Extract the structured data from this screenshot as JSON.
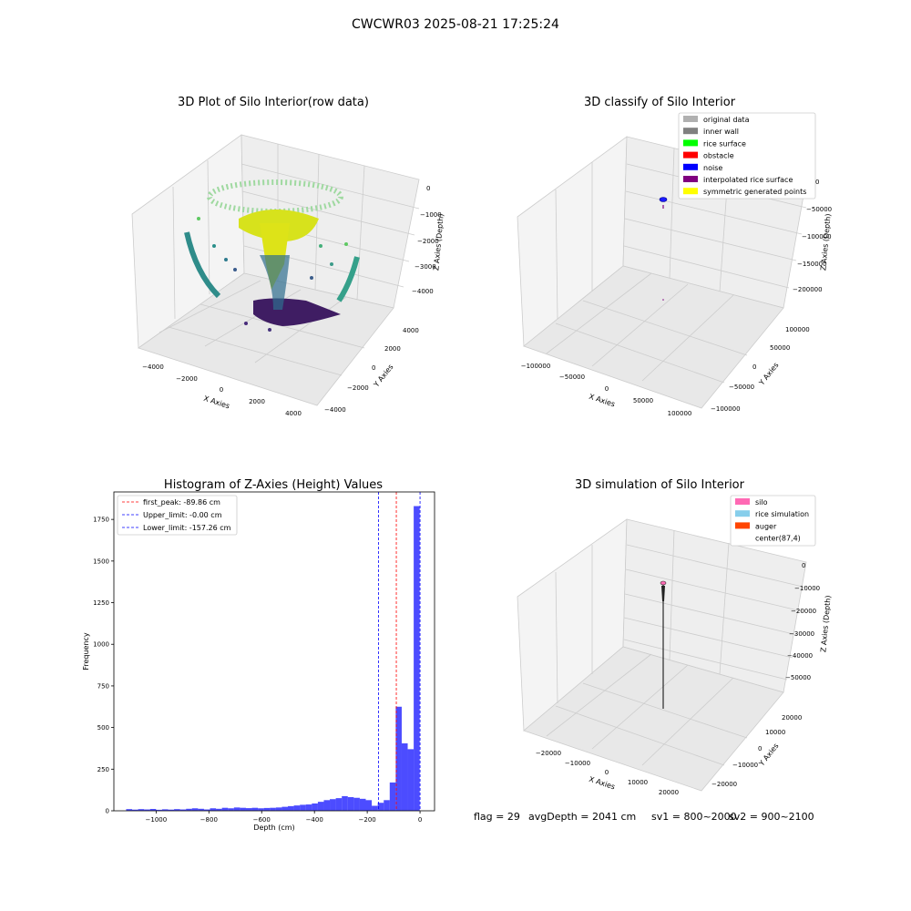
{
  "figure": {
    "suptitle": "CWCWR03 2025-08-21 17:25:24",
    "footer": {
      "flag": "flag = 29",
      "avg_depth": "avgDepth = 2041 cm",
      "sv1": "sv1 = 800~2000",
      "sv2": "sv2 = 900~2100"
    }
  },
  "chart_data": [
    {
      "type": "scatter",
      "title": "3D Plot of Silo Interior(row data)",
      "xlabel": "X Axies",
      "ylabel": "Y Axies",
      "zlabel": "Z Axies (Depth)",
      "xticks": [
        "−4000",
        "−2000",
        "0",
        "2000",
        "4000"
      ],
      "yticks": [
        "−4000",
        "−2000",
        "0",
        "2000",
        "4000"
      ],
      "zticks": [
        "0",
        "−1000",
        "−2000",
        "−3000",
        "−4000"
      ],
      "xlim": [
        -4500,
        4500
      ],
      "ylim": [
        -4500,
        4500
      ],
      "zlim": [
        -4500,
        0
      ],
      "colormap": "viridis",
      "colormap_stops": [
        "#440154",
        "#3b528b",
        "#21918c",
        "#5ec962",
        "#fde725"
      ]
    },
    {
      "type": "scatter",
      "title": "3D classify of Silo Interior",
      "xlabel": "X Axies",
      "ylabel": "Y Axies",
      "zlabel": "Z Axies (Depth)",
      "xticks": [
        "−100000",
        "−50000",
        "0",
        "50000",
        "100000"
      ],
      "yticks": [
        "−100000",
        "−50000",
        "0",
        "50000",
        "100000"
      ],
      "zticks": [
        "0",
        "−50000",
        "−100000",
        "−150000",
        "−200000"
      ],
      "legend": [
        {
          "label": "original data",
          "color": "#b0b0b0"
        },
        {
          "label": "inner wall",
          "color": "#808080"
        },
        {
          "label": "rice surface",
          "color": "#00ff00"
        },
        {
          "label": "obstacle",
          "color": "#ff0000"
        },
        {
          "label": "noise",
          "color": "#0000ff"
        },
        {
          "label": "interpolated rice surface",
          "color": "#800080"
        },
        {
          "label": "symmetric generated points",
          "color": "#ffff00"
        }
      ],
      "legend_position": "top-right"
    },
    {
      "type": "bar",
      "title": "Histogram of Z-Axies (Height) Values",
      "xlabel": "Depth (cm)",
      "ylabel": "Frequency",
      "xlim": [
        -1160,
        55
      ],
      "ylim": [
        0,
        1915
      ],
      "xticks": [
        -1000,
        -800,
        -600,
        -400,
        -200,
        0
      ],
      "xtick_labels": [
        "−1000",
        "−800",
        "−600",
        "−400",
        "−200",
        "0"
      ],
      "yticks": [
        0,
        250,
        500,
        750,
        1000,
        1250,
        1500,
        1750
      ],
      "ytick_labels": [
        "0",
        "250",
        "500",
        "750",
        "1000",
        "1250",
        "1500",
        "1750"
      ],
      "bar_color": "#0000ff",
      "bin_width": 22.7,
      "bin_starts": [
        -1113.6,
        -1090.9,
        -1068.2,
        -1045.5,
        -1022.8,
        -1000.1,
        -977.4,
        -954.7,
        -932,
        -909.3,
        -886.6,
        -863.9,
        -841.2,
        -818.5,
        -795.8,
        -773.1,
        -750.4,
        -727.7,
        -705,
        -682.3,
        -659.6,
        -636.9,
        -614.2,
        -591.5,
        -568.8,
        -546.1,
        -523.4,
        -500.7,
        -478,
        -455.3,
        -432.6,
        -409.9,
        -387.2,
        -364.5,
        -341.8,
        -319.1,
        -296.4,
        -273.7,
        -251,
        -228.3,
        -205.6,
        -182.9,
        -160.2,
        -137.5,
        -114.8,
        -92.1,
        -69.4,
        -46.7,
        -24,
        -1.3
      ],
      "values": [
        10,
        7,
        10,
        8,
        11,
        6,
        9,
        7,
        10,
        8,
        12,
        15,
        12,
        8,
        15,
        12,
        18,
        15,
        20,
        18,
        16,
        18,
        15,
        17,
        18,
        20,
        24,
        28,
        32,
        36,
        38,
        44,
        54,
        64,
        70,
        76,
        88,
        82,
        78,
        72,
        64,
        30,
        48,
        64,
        170,
        625,
        405,
        370,
        1830,
        0
      ],
      "vlines": [
        {
          "x": -89.86,
          "color": "#ff0000",
          "label": "first_peak: -89.86 cm"
        },
        {
          "x": -0.0,
          "color": "#0000ff",
          "label": "Upper_limit: -0.00 cm"
        },
        {
          "x": -157.26,
          "color": "#0000ff",
          "label": "Lower_limit: -157.26 cm"
        }
      ],
      "legend_position": "top-left"
    },
    {
      "type": "scatter",
      "title": "3D simulation of Silo Interior",
      "xlabel": "X Axies",
      "ylabel": "Y Axies",
      "zlabel": "Z Axies (Depth)",
      "xticks": [
        "−20000",
        "−10000",
        "0",
        "10000",
        "20000"
      ],
      "yticks": [
        "−20000",
        "−10000",
        "0",
        "10000",
        "20000"
      ],
      "zticks": [
        "0",
        "−10000",
        "−20000",
        "−30000",
        "−40000",
        "−50000"
      ],
      "legend": [
        {
          "label": "silo",
          "color": "#ff69b4"
        },
        {
          "label": "rice simulation",
          "color": "#87ceeb"
        },
        {
          "label": "auger",
          "color": "#ff4500"
        },
        {
          "label": "center(87,4)",
          "color": "#ffffff"
        }
      ],
      "legend_position": "top-right"
    }
  ]
}
